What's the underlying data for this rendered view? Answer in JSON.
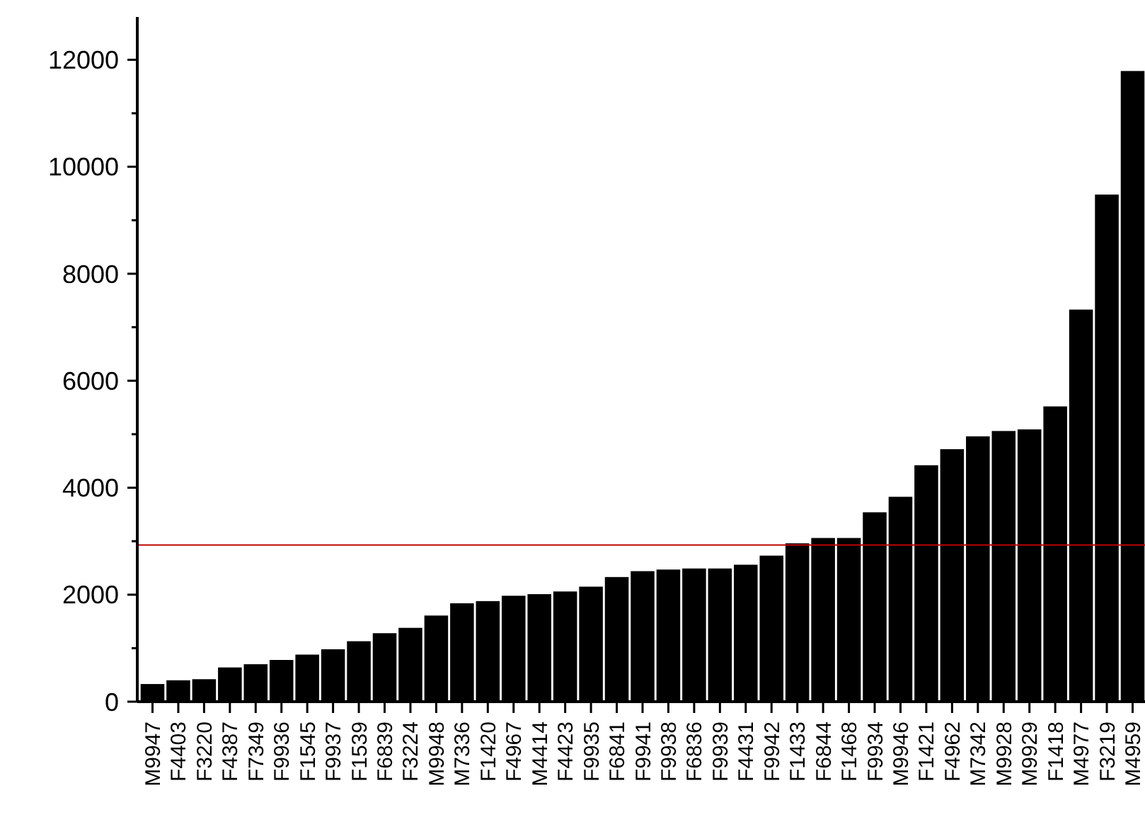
{
  "chart_data": {
    "type": "bar",
    "categories": [
      "M9947",
      "F4403",
      "F3220",
      "F4387",
      "F7349",
      "F9936",
      "F1545",
      "F9937",
      "F1539",
      "F6839",
      "F3224",
      "M9948",
      "M7336",
      "F1420",
      "F4967",
      "M4414",
      "F4423",
      "F9935",
      "F6841",
      "F9941",
      "F9938",
      "F6836",
      "F9939",
      "F4431",
      "F9942",
      "F1433",
      "F6844",
      "F1468",
      "F9934",
      "M9946",
      "F1421",
      "F4962",
      "M7342",
      "M9928",
      "M9929",
      "F1418",
      "M4977",
      "F3219",
      "M4959"
    ],
    "values": [
      330,
      400,
      420,
      640,
      700,
      780,
      880,
      980,
      1130,
      1280,
      1380,
      1610,
      1840,
      1880,
      1980,
      2010,
      2060,
      2150,
      2330,
      2440,
      2470,
      2490,
      2490,
      2560,
      2730,
      2960,
      3060,
      3060,
      3540,
      3830,
      4420,
      4720,
      4960,
      5060,
      5090,
      5520,
      7330,
      9480,
      11790
    ],
    "color": "#000000",
    "ylim": [
      0,
      12800
    ],
    "yticks": [
      0,
      {
        "value": 1000,
        "label": null
      },
      2000,
      {
        "value": 3000,
        "label": null
      },
      4000,
      {
        "value": 5000,
        "label": null
      },
      6000,
      {
        "value": 7000,
        "label": null
      },
      8000,
      {
        "value": 9000,
        "label": null
      },
      10000,
      {
        "value": 11000,
        "label": null
      },
      12000
    ],
    "ref_lines": [
      {
        "axis": "y",
        "value": 2930,
        "color": "#c00000"
      }
    ],
    "grid": false
  }
}
